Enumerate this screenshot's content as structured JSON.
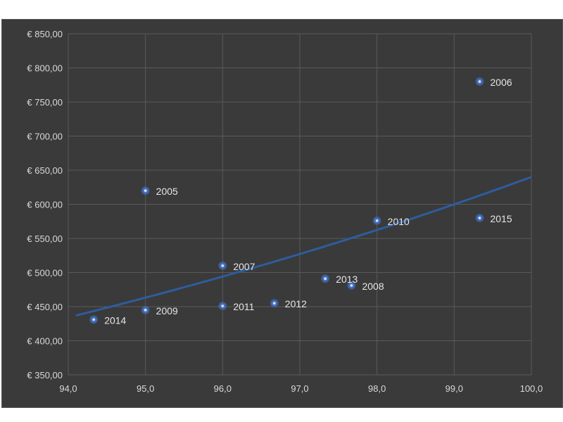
{
  "chart_data": {
    "type": "scatter",
    "title": "",
    "xlabel": "",
    "ylabel": "",
    "xlim": [
      94.0,
      100.0
    ],
    "ylim": [
      350,
      850
    ],
    "x_ticks": [
      94.0,
      95.0,
      96.0,
      97.0,
      98.0,
      99.0,
      100.0
    ],
    "x_tick_labels": [
      "94,0",
      "95,0",
      "96,0",
      "97,0",
      "98,0",
      "99,0",
      "100,0"
    ],
    "y_ticks": [
      350,
      400,
      450,
      500,
      550,
      600,
      650,
      700,
      750,
      800,
      850
    ],
    "y_tick_labels": [
      "€ 350,00",
      "€ 400,00",
      "€ 450,00",
      "€ 500,00",
      "€ 550,00",
      "€ 600,00",
      "€ 650,00",
      "€ 700,00",
      "€ 750,00",
      "€ 800,00",
      "€ 850,00"
    ],
    "grid": true,
    "points": [
      {
        "label": "2005",
        "x": 95.0,
        "y": 620
      },
      {
        "label": "2006",
        "x": 99.33,
        "y": 780
      },
      {
        "label": "2007",
        "x": 96.0,
        "y": 510
      },
      {
        "label": "2008",
        "x": 97.67,
        "y": 481
      },
      {
        "label": "2009",
        "x": 95.0,
        "y": 445
      },
      {
        "label": "2010",
        "x": 98.0,
        "y": 576
      },
      {
        "label": "2011",
        "x": 96.0,
        "y": 451
      },
      {
        "label": "2012",
        "x": 96.67,
        "y": 455
      },
      {
        "label": "2013",
        "x": 97.33,
        "y": 491
      },
      {
        "label": "2014",
        "x": 94.33,
        "y": 431
      },
      {
        "label": "2015",
        "x": 99.33,
        "y": 580
      }
    ],
    "trendline": {
      "type": "exponential",
      "x": [
        94.1,
        100.0
      ],
      "y": [
        437,
        640
      ]
    },
    "colors": {
      "background": "#3a3a3a",
      "grid": "#5a5a5a",
      "marker": "#4472c4",
      "marker_center": "#dce6f5",
      "trendline": "#2e5c9e",
      "text": "#d9d9d9"
    }
  }
}
